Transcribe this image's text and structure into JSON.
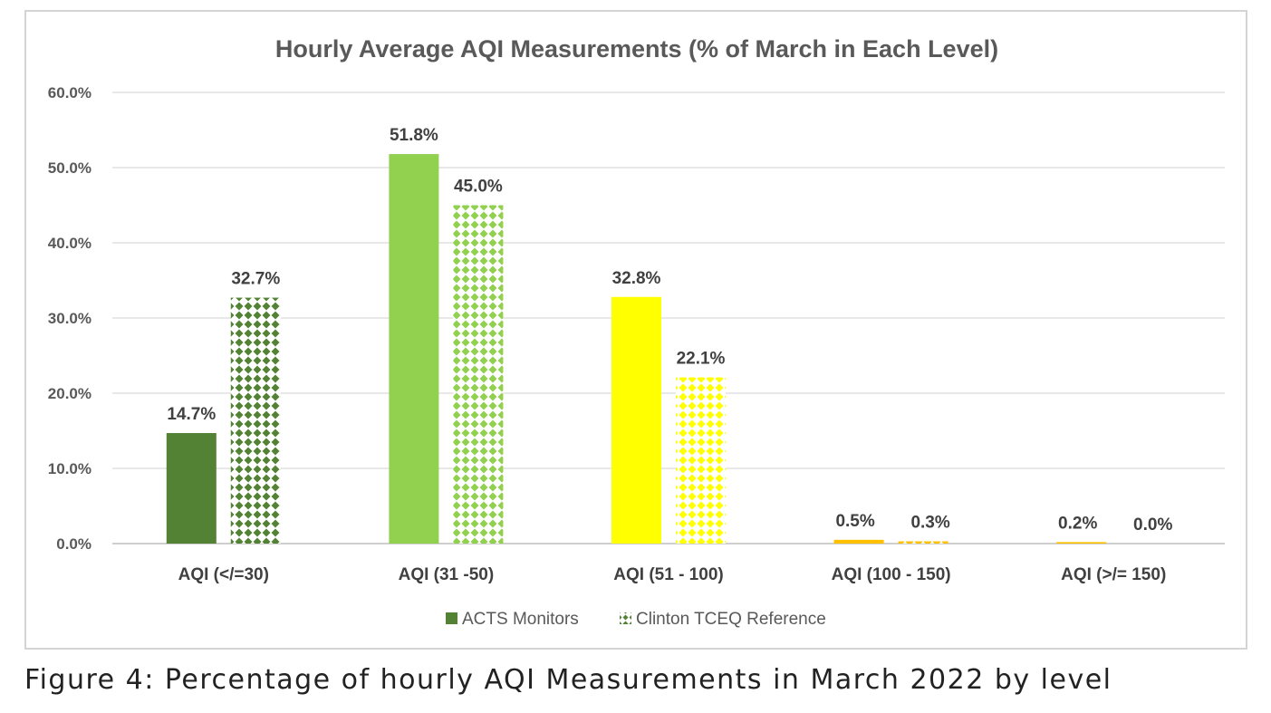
{
  "chart_data": {
    "type": "bar",
    "title": "Hourly Average AQI Measurements (% of March in Each Level)",
    "categories": [
      "AQI (</=30)",
      "AQI (31 -50)",
      "AQI (51 - 100)",
      "AQI (100 - 150)",
      "AQI (>/= 150)"
    ],
    "series": [
      {
        "name": "ACTS Monitors",
        "values": [
          14.7,
          51.8,
          32.8,
          0.5,
          0.2
        ],
        "labels": [
          "14.7%",
          "51.8%",
          "32.8%",
          "0.5%",
          "0.2%"
        ],
        "pattern": "solid"
      },
      {
        "name": "Clinton TCEQ Reference",
        "values": [
          32.7,
          45.0,
          22.1,
          0.3,
          0.0
        ],
        "labels": [
          "32.7%",
          "45.0%",
          "22.1%",
          "0.3%",
          "0.0%"
        ],
        "pattern": "diamond-dots"
      }
    ],
    "bar_colors": [
      "#548235",
      "#92d050",
      "#ffff00",
      "#ffc000",
      "#ffc000"
    ],
    "ylim": [
      0,
      60
    ],
    "yticks": [
      "0.0%",
      "10.0%",
      "20.0%",
      "30.0%",
      "40.0%",
      "50.0%",
      "60.0%"
    ],
    "grid": true,
    "legend_position": "bottom",
    "legend_color": "#548235"
  },
  "caption": "Figure 4: Percentage of hourly AQI Measurements in March 2022 by level"
}
